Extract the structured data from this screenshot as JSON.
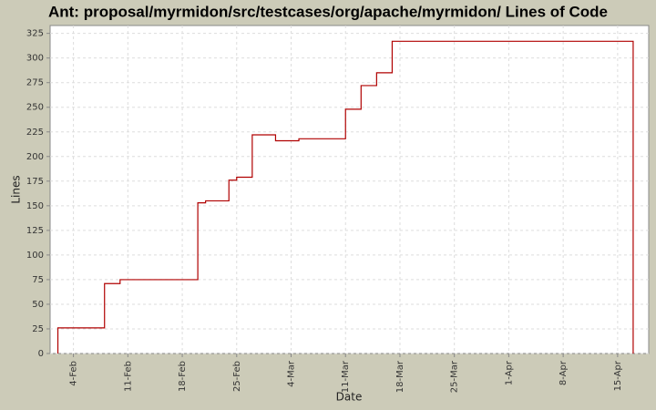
{
  "chart_data": {
    "type": "step-line",
    "title": "Ant: proposal/myrmidon/src/testcases/org/apache/myrmidon/ Lines of Code",
    "x_label": "Date",
    "y_label": "Lines",
    "series": [
      {
        "name": "Lines",
        "color": "#b00000",
        "x": [
          "2-Feb",
          "8-Feb",
          "10-Feb",
          "20-Feb",
          "21-Feb",
          "24-Feb",
          "25-Feb",
          "27-Feb",
          "2-Mar",
          "5-Mar",
          "11-Mar",
          "13-Mar",
          "15-Mar",
          "17-Mar",
          "17-Apr"
        ],
        "values": [
          26,
          71,
          75,
          153,
          155,
          176,
          179,
          222,
          216,
          218,
          248,
          272,
          285,
          317,
          0
        ]
      }
    ],
    "xlim": [
      "1-Feb",
      "19-Apr"
    ],
    "xticks": [
      "4-Feb",
      "11-Feb",
      "18-Feb",
      "25-Feb",
      "4-Mar",
      "11-Mar",
      "18-Mar",
      "25-Mar",
      "1-Apr",
      "8-Apr",
      "15-Apr"
    ],
    "ylim": [
      0,
      333
    ],
    "yticks": [
      0,
      25,
      50,
      75,
      100,
      125,
      150,
      175,
      200,
      225,
      250,
      275,
      300,
      325
    ],
    "grid": true
  }
}
